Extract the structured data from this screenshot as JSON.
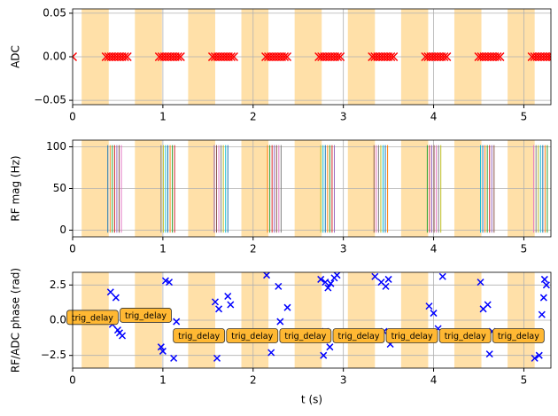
{
  "chart_data": [
    {
      "type": "blocks",
      "ylabel": "ADC",
      "xlim": [
        0,
        5.3
      ],
      "xticks": [
        0,
        1,
        2,
        3,
        4,
        5
      ],
      "ylim": [
        -0.055,
        0.055
      ],
      "yticks": [
        {
          "value": -0.05,
          "label": "−0.05"
        },
        {
          "value": 0,
          "label": "0.00"
        },
        {
          "value": 0.05,
          "label": "0.05"
        }
      ],
      "grid": true,
      "span_color": "#ffe0a8",
      "spans": [
        [
          0.1,
          0.4
        ],
        [
          0.69,
          0.99
        ],
        [
          1.28,
          1.58
        ],
        [
          1.87,
          2.17
        ],
        [
          2.46,
          2.76
        ],
        [
          3.05,
          3.35
        ],
        [
          3.64,
          3.94
        ],
        [
          4.23,
          4.53
        ],
        [
          4.82,
          5.12
        ]
      ],
      "color": "#ff0000",
      "block_y": 0,
      "blocks": [
        [
          0,
          0
        ],
        [
          0.37,
          0.61
        ],
        [
          0.96,
          1.2
        ],
        [
          1.55,
          1.79
        ],
        [
          2.14,
          2.38
        ],
        [
          2.73,
          2.97
        ],
        [
          3.32,
          3.56
        ],
        [
          3.91,
          4.15
        ],
        [
          4.5,
          4.74
        ],
        [
          5.09,
          5.33
        ]
      ]
    },
    {
      "type": "vlines",
      "ylabel": "RF mag (Hz)",
      "xlim": [
        0,
        5.3
      ],
      "xticks": [
        0,
        1,
        2,
        3,
        4,
        5
      ],
      "ylim": [
        -8,
        108
      ],
      "yticks": [
        0,
        50,
        100
      ],
      "grid": true,
      "span_color": "#ffe0a8",
      "spans": [
        [
          0.1,
          0.4
        ],
        [
          0.69,
          0.99
        ],
        [
          1.28,
          1.58
        ],
        [
          1.87,
          2.17
        ],
        [
          2.46,
          2.76
        ],
        [
          3.05,
          3.35
        ],
        [
          3.64,
          3.94
        ],
        [
          4.23,
          4.53
        ],
        [
          4.82,
          5.12
        ]
      ],
      "colors": [
        "#1f77b4",
        "#ff7f0e",
        "#2ca02c",
        "#d62728",
        "#9467bd",
        "#8c564b",
        "#e377c2",
        "#7f7f7f",
        "#bcbd22",
        "#17becf"
      ],
      "x": [
        0.39,
        0.415,
        0.44,
        0.465,
        0.49,
        0.515,
        0.54,
        0.98,
        1.005,
        1.03,
        1.055,
        1.08,
        1.105,
        1.13,
        1.57,
        1.595,
        1.62,
        1.645,
        1.67,
        1.695,
        1.72,
        2.16,
        2.185,
        2.21,
        2.235,
        2.26,
        2.285,
        2.31,
        2.75,
        2.775,
        2.8,
        2.825,
        2.85,
        2.875,
        2.9,
        3.34,
        3.365,
        3.39,
        3.415,
        3.44,
        3.465,
        3.49,
        3.93,
        3.955,
        3.98,
        4.005,
        4.03,
        4.055,
        4.08,
        4.52,
        4.545,
        4.57,
        4.595,
        4.62,
        4.645,
        4.67,
        5.11,
        5.135,
        5.16,
        5.185,
        5.21,
        5.235,
        5.26
      ],
      "values": [
        102,
        102,
        102,
        102,
        102,
        102,
        102,
        102,
        102,
        102,
        102,
        102,
        102,
        102,
        102,
        102,
        102,
        102,
        102,
        102,
        102,
        102,
        102,
        102,
        102,
        102,
        102,
        102,
        102,
        102,
        102,
        102,
        102,
        102,
        102,
        102,
        102,
        102,
        102,
        102,
        102,
        102,
        102,
        102,
        102,
        102,
        102,
        102,
        102,
        102,
        102,
        102,
        102,
        102,
        102,
        102,
        102,
        102,
        102,
        102,
        102,
        102,
        102
      ]
    },
    {
      "type": "scatter",
      "ylabel": "RF/ADC phase (rad)",
      "xlabel": "t (s)",
      "xlim": [
        0,
        5.3
      ],
      "xticks": [
        0,
        1,
        2,
        3,
        4,
        5
      ],
      "ylim": [
        -3.4,
        3.4
      ],
      "yticks": [
        {
          "value": -2.5,
          "label": "−2.5"
        },
        {
          "value": 0,
          "label": "0.0"
        },
        2.5
      ],
      "grid": true,
      "span_color": "#ffe0a8",
      "spans": [
        [
          0.1,
          0.4
        ],
        [
          0.69,
          0.99
        ],
        [
          1.28,
          1.58
        ],
        [
          1.87,
          2.17
        ],
        [
          2.46,
          2.76
        ],
        [
          3.05,
          3.35
        ],
        [
          3.64,
          3.94
        ],
        [
          4.23,
          4.53
        ],
        [
          4.82,
          5.12
        ]
      ],
      "color": "#0000ff",
      "x": [
        0.42,
        0.48,
        0.44,
        0.5,
        0.52,
        0.55,
        0.98,
        1.0,
        1.03,
        1.07,
        1.12,
        1.15,
        1.58,
        1.62,
        1.6,
        1.72,
        1.75,
        2.15,
        2.2,
        2.28,
        2.3,
        2.38,
        2.75,
        2.8,
        2.83,
        2.86,
        2.9,
        2.93,
        2.78,
        2.85,
        2.8,
        3.35,
        3.42,
        3.47,
        3.5,
        3.45,
        3.52,
        3.95,
        4.0,
        4.05,
        4.1,
        4.52,
        4.55,
        4.6,
        4.65,
        4.62,
        5.12,
        5.17,
        5.2,
        5.22,
        5.25,
        5.23
      ],
      "values": [
        2.0,
        1.6,
        -0.3,
        -0.7,
        -0.9,
        -1.1,
        -1.9,
        -2.2,
        2.8,
        2.7,
        -2.7,
        -0.1,
        1.3,
        0.8,
        -2.7,
        1.7,
        1.1,
        3.2,
        -2.3,
        2.4,
        -0.1,
        0.9,
        2.9,
        2.7,
        2.3,
        2.6,
        3.0,
        3.2,
        -2.5,
        -1.9,
        -0.8,
        3.1,
        2.7,
        2.4,
        2.9,
        -0.8,
        -1.7,
        1.0,
        0.5,
        -0.6,
        3.1,
        2.7,
        0.8,
        1.1,
        -0.8,
        -2.4,
        -2.7,
        -2.5,
        0.4,
        1.6,
        2.5,
        2.9
      ],
      "annotation_color": "#ffb833",
      "annotations": [
        {
          "x": 0.22,
          "y": 0.2,
          "text": "trig_delay"
        },
        {
          "x": 0.81,
          "y": 0.35,
          "text": "trig_delay"
        },
        {
          "x": 1.4,
          "y": -1.1,
          "text": "trig_delay"
        },
        {
          "x": 1.99,
          "y": -1.1,
          "text": "trig_delay"
        },
        {
          "x": 2.58,
          "y": -1.1,
          "text": "trig_delay"
        },
        {
          "x": 3.17,
          "y": -1.1,
          "text": "trig_delay"
        },
        {
          "x": 3.76,
          "y": -1.1,
          "text": "trig_delay"
        },
        {
          "x": 4.35,
          "y": -1.1,
          "text": "trig_delay"
        },
        {
          "x": 4.94,
          "y": -1.1,
          "text": "trig_delay"
        }
      ]
    }
  ]
}
